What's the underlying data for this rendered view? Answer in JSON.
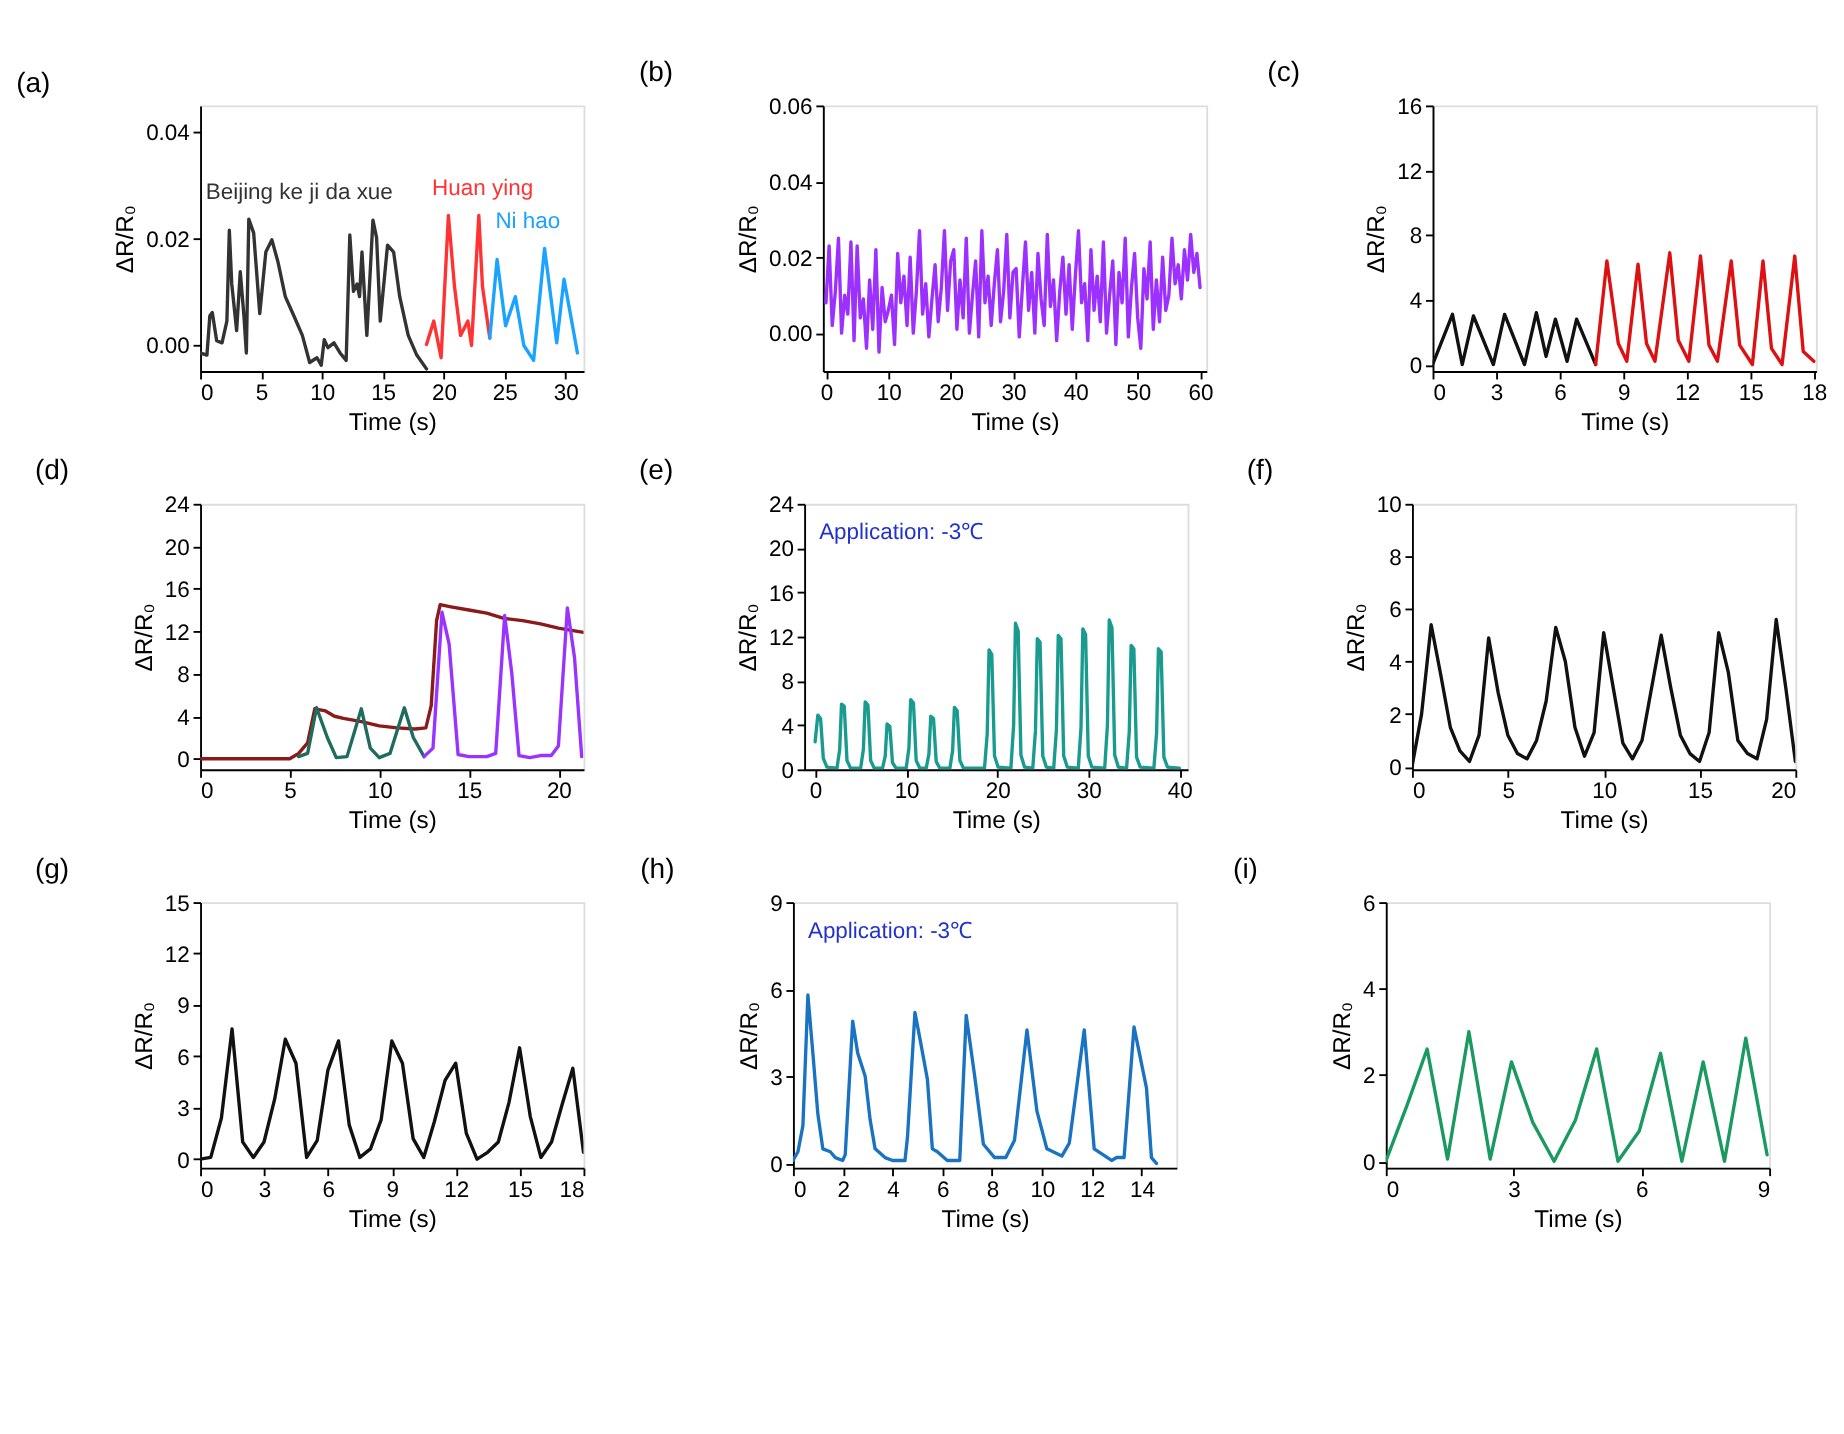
{
  "chart_data": [
    {
      "type": "line",
      "title": "(a)",
      "xlabel": "Time (s)",
      "ylabel": "ΔR/R₀",
      "xlim": [
        0,
        31.5
      ],
      "ylim": [
        -0.005,
        0.045
      ],
      "xticks": [
        0,
        5,
        10,
        15,
        20,
        25,
        30
      ],
      "yticks": [
        {
          "value": 0,
          "label": "0.00"
        },
        {
          "value": 0.02,
          "label": "0.02"
        },
        {
          "value": 0.04,
          "label": "0.04"
        }
      ],
      "series": [
        {
          "name": "Beijing ke ji da xue",
          "color": "#333333",
          "x": [
            0,
            0.56,
            0.8,
            1.0,
            1.36,
            1.8,
            2.2,
            2.4,
            2.6,
            3.0,
            3.3,
            3.6,
            3.8,
            4.0,
            4.4,
            4.9,
            5.4,
            5.9,
            6.4,
            7.0,
            7.7,
            8.4,
            9.0,
            9.6,
            9.95,
            10.2,
            10.5,
            11.0,
            11.5,
            12.0,
            12.3,
            12.6,
            12.9,
            13.1,
            13.3,
            13.7,
            14.2,
            14.5,
            14.8,
            15.4,
            15.9,
            16.4,
            17.1,
            17.8,
            18.6
          ],
          "values": [
            -0.0016,
            -0.002,
            0.0054,
            0.006,
            0.0007,
            0.0003,
            0.0044,
            0.0215,
            0.0114,
            0.0026,
            0.0137,
            0.0054,
            -0.0016,
            0.0236,
            0.021,
            0.0058,
            0.0174,
            0.0197,
            0.0155,
            0.009,
            0.0054,
            0.0017,
            -0.0034,
            -0.0025,
            -0.0039,
            0.0009,
            -0.0006,
            0.0003,
            -0.0016,
            -0.003,
            0.0206,
            0.01,
            0.0114,
            0.009,
            0.0174,
            0.0017,
            0.0234,
            0.0201,
            0.0044,
            0.0187,
            0.0174,
            0.009,
            0.0017,
            -0.002,
            -0.0046
          ]
        },
        {
          "name": "Huan ying",
          "color": "#ff3333",
          "x": [
            18.6,
            19.2,
            19.8,
            20.4,
            20.9,
            21.4,
            22.0,
            22.3,
            22.9,
            23.2,
            23.8
          ],
          "values": [
            0.0,
            0.0044,
            -0.0025,
            0.0243,
            0.0109,
            0.0017,
            0.0044,
            -0.0002,
            0.0243,
            0.0109,
            0.0012
          ]
        },
        {
          "name": "Ni hao",
          "color": "#1aa3ff",
          "x": [
            23.8,
            24.4,
            25.1,
            25.9,
            26.6,
            27.4,
            28.3,
            29.3,
            29.9,
            30.6,
            31.0
          ],
          "values": [
            0.0012,
            0.016,
            0.0035,
            0.009,
            -0.0002,
            -0.003,
            0.0181,
            0.0003,
            0.0123,
            0.0035,
            -0.0016
          ]
        }
      ]
    },
    {
      "type": "line",
      "title": "(b)",
      "xlabel": "Time (s)",
      "ylabel": "ΔR/R₀",
      "xlim": [
        -0.5,
        61
      ],
      "ylim": [
        -0.01,
        0.06
      ],
      "xticks": [
        0,
        10,
        20,
        30,
        40,
        50,
        60
      ],
      "yticks": [
        {
          "value": 0,
          "label": "0.00"
        },
        {
          "value": 0.02,
          "label": "0.02"
        },
        {
          "value": 0.04,
          "label": "0.04"
        },
        {
          "value": 0.06,
          "label": "0.06"
        }
      ],
      "series": [
        {
          "color": "#9b30ff",
          "x": [
            0,
            0.5,
            1,
            1.5,
            2,
            2.5,
            3,
            3.5,
            4,
            4.5,
            5,
            5.5,
            6,
            6.5,
            7,
            7.5,
            8,
            8.5,
            9,
            9.5,
            10,
            10.5,
            11,
            11.5,
            12,
            12.5,
            13,
            13.5,
            14,
            14.5,
            15,
            15.5,
            16,
            16.5,
            17,
            17.5,
            18,
            18.5,
            19,
            19.5,
            20,
            20.5,
            21,
            21.5,
            22,
            22.5,
            23,
            23.5,
            24,
            24.5,
            25,
            25.5,
            26,
            26.5,
            27,
            27.5,
            28,
            28.5,
            29,
            29.5,
            30,
            30.5,
            31,
            31.5,
            32,
            32.5,
            33,
            33.5,
            34,
            34.5,
            35,
            35.5,
            36,
            36.5,
            37,
            37.5,
            38,
            38.5,
            39,
            39.5,
            40,
            40.5,
            41,
            41.5,
            42,
            42.5,
            43,
            43.5,
            44,
            44.5,
            45,
            45.5,
            46,
            46.5,
            47,
            47.5,
            48,
            48.5,
            49,
            49.5,
            50,
            50.5,
            51,
            51.5,
            52,
            52.5,
            53,
            53.5,
            54,
            54.5,
            55,
            55.5,
            56,
            56.5,
            57,
            57.5,
            58,
            58.5,
            59,
            59.5,
            60
          ],
          "values": [
            0.008,
            0.023,
            0.002,
            0.011,
            0.025,
            0.0,
            0.01,
            0.005,
            0.024,
            -0.002,
            0.023,
            0.004,
            0.009,
            -0.004,
            0.014,
            0.001,
            0.022,
            -0.005,
            0.012,
            0.003,
            0.006,
            0.01,
            -0.003,
            0.021,
            0.008,
            0.015,
            0.002,
            0.02,
            0.0,
            0.011,
            0.027,
            0.005,
            0.013,
            -0.001,
            0.009,
            0.018,
            0.003,
            0.012,
            0.027,
            0.006,
            0.019,
            0.022,
            0.001,
            0.014,
            0.004,
            0.025,
            0.0,
            0.01,
            0.019,
            -0.001,
            0.027,
            0.008,
            0.015,
            0.002,
            0.013,
            0.022,
            0.003,
            0.011,
            0.026,
            0.004,
            0.016,
            0.017,
            -0.001,
            0.012,
            0.024,
            0.006,
            0.016,
            0.0,
            0.021,
            0.009,
            0.002,
            0.026,
            0.007,
            0.014,
            -0.002,
            0.011,
            0.02,
            0.005,
            0.018,
            0.001,
            0.015,
            0.027,
            0.008,
            0.013,
            -0.002,
            0.022,
            0.006,
            0.015,
            0.003,
            0.024,
            0.0,
            0.01,
            0.019,
            -0.003,
            0.016,
            0.008,
            0.025,
            -0.001,
            0.012,
            0.021,
            0.004,
            -0.004,
            0.017,
            0.009,
            0.024,
            0.001,
            0.014,
            0.003,
            0.02,
            0.006,
            0.01,
            0.025,
            0.013,
            0.018,
            0.009,
            0.022,
            0.014,
            0.026,
            0.016,
            0.021,
            0.012
          ]
        }
      ]
    },
    {
      "type": "line",
      "title": "(c)",
      "xlabel": "Time (s)",
      "ylabel": "ΔR/R₀",
      "xlim": [
        0,
        18.1
      ],
      "ylim": [
        -0.4,
        16
      ],
      "xticks": [
        0,
        3,
        6,
        9,
        12,
        15,
        18
      ],
      "yticks": [
        0,
        4,
        8,
        12,
        16
      ],
      "series": [
        {
          "color": "#111111",
          "x": [
            0,
            0.94,
            1.4,
            1.93,
            2.87,
            3.4,
            4.34,
            4.9,
            5.36,
            5.8,
            6.35,
            6.8,
            7.7
          ],
          "values": [
            0,
            3.1,
            0,
            3.0,
            0,
            3.1,
            0,
            3.2,
            0.5,
            2.8,
            0.2,
            2.8,
            0
          ]
        },
        {
          "color": "#dd1111",
          "x": [
            7.7,
            8.23,
            8.77,
            9.17,
            9.7,
            10.1,
            10.5,
            11.2,
            11.6,
            12.1,
            12.65,
            13.05,
            13.45,
            14.1,
            14.5,
            15.1,
            15.6,
            16.0,
            16.5,
            17.1,
            17.5,
            18.0
          ],
          "values": [
            0,
            6.4,
            1.3,
            0.2,
            6.2,
            1.3,
            0.2,
            6.9,
            1.5,
            0.2,
            6.7,
            1.2,
            0.2,
            6.4,
            1.2,
            0,
            6.4,
            1.0,
            0,
            6.7,
            0.8,
            0.2
          ]
        }
      ]
    },
    {
      "type": "line",
      "title": "(d)",
      "xlabel": "Time (s)",
      "ylabel": "ΔR/R₀",
      "xlim": [
        0,
        21.4
      ],
      "ylim": [
        -1,
        24
      ],
      "xticks": [
        0,
        5,
        10,
        15,
        20
      ],
      "yticks": [
        0,
        4,
        8,
        12,
        16,
        20,
        24
      ],
      "series": [
        {
          "color": "#8b1a1a",
          "x": [
            0,
            5,
            5.5,
            6.0,
            6.4,
            7.0,
            7.5,
            8,
            9,
            10,
            11,
            12,
            12.6,
            12.9,
            13.2,
            13.4,
            14,
            15,
            16,
            17,
            18,
            19,
            20,
            21.4
          ],
          "values": [
            0,
            0,
            0.5,
            1.5,
            4.7,
            4.5,
            4.0,
            3.8,
            3.5,
            3.1,
            2.9,
            2.8,
            2.9,
            5,
            13,
            14.5,
            14.3,
            14.0,
            13.7,
            13.2,
            13.0,
            12.7,
            12.3,
            11.9
          ]
        },
        {
          "color": "#1f6b5e",
          "x": [
            5.5,
            6.0,
            6.5,
            7.1,
            7.6,
            8.2,
            9.0,
            9.5,
            10,
            10.6,
            11.4,
            11.9,
            12.5
          ],
          "values": [
            0.2,
            0.5,
            4.8,
            2,
            0.1,
            0.2,
            4.7,
            1,
            0.1,
            0.5,
            4.8,
            2,
            0.2
          ]
        },
        {
          "color": "#9933ff",
          "x": [
            12.5,
            13.0,
            13.5,
            13.9,
            14.4,
            15.0,
            16.0,
            16.5,
            17.0,
            17.4,
            17.8,
            18.4,
            19,
            19.6,
            20.0,
            20.5,
            20.9,
            21.3
          ],
          "values": [
            0.2,
            1,
            13.8,
            10.8,
            0.4,
            0.2,
            0.2,
            0.5,
            13.5,
            8,
            0.3,
            0.1,
            0.3,
            0.3,
            1.2,
            14.2,
            9.5,
            0.2
          ]
        }
      ]
    },
    {
      "type": "line",
      "title": "(e)",
      "xlabel": "Time (s)",
      "ylabel": "ΔR/R₀",
      "annotations": [
        "Application: -3℃"
      ],
      "xlim": [
        -1.2,
        40.9
      ],
      "ylim": [
        0,
        24
      ],
      "xticks": [
        0,
        10,
        20,
        30,
        40
      ],
      "yticks": [
        0,
        4,
        8,
        12,
        16,
        20,
        24
      ],
      "series": [
        {
          "color": "#199c8f",
          "x": [
            0,
            0.3,
            0.6,
            0.9,
            1.3,
            2.4,
            2.7,
            2.9,
            3.2,
            3.5,
            3.9,
            5.0,
            5.3,
            5.5,
            5.8,
            6.1,
            6.5,
            7.4,
            7.7,
            7.9,
            8.2,
            8.5,
            8.9,
            10.0,
            10.3,
            10.5,
            10.8,
            11.1,
            11.5,
            12.2,
            12.5,
            12.7,
            13.0,
            13.3,
            13.7,
            14.8,
            15.1,
            15.3,
            15.6,
            15.9,
            16.3,
            18.6,
            18.9,
            19.1,
            19.4,
            19.7,
            20.1,
            21.5,
            21.8,
            22.0,
            22.3,
            22.6,
            23.0,
            23.9,
            24.2,
            24.4,
            24.7,
            25.0,
            25.4,
            26.2,
            26.5,
            26.7,
            27.0,
            27.3,
            27.7,
            28.9,
            29.2,
            29.4,
            29.7,
            30.0,
            30.4,
            31.8,
            32.1,
            32.3,
            32.6,
            32.9,
            33.3,
            34.2,
            34.5,
            34.7,
            35.0,
            35.3,
            35.7,
            37.2,
            37.5,
            37.7,
            38.0,
            38.3,
            38.7,
            40.0
          ],
          "values": [
            2.5,
            4.9,
            4.6,
            1.0,
            0.2,
            0.1,
            1.8,
            5.9,
            5.7,
            0.8,
            0.1,
            0.1,
            1.8,
            6.1,
            5.8,
            0.8,
            0.1,
            0.1,
            1.2,
            4.1,
            3.9,
            0.6,
            0.1,
            0.1,
            1.9,
            6.3,
            6.0,
            0.8,
            0.1,
            0.1,
            1.4,
            4.8,
            4.6,
            0.7,
            0.1,
            0.1,
            1.7,
            5.6,
            5.3,
            0.8,
            0.1,
            0.1,
            3.2,
            10.8,
            10.4,
            1.2,
            0.2,
            0.1,
            4.0,
            13.2,
            12.5,
            1.3,
            0.2,
            0.1,
            3.5,
            11.8,
            11.5,
            1.2,
            0.2,
            0.1,
            3.6,
            12.1,
            11.8,
            1.2,
            0.2,
            0.1,
            3.8,
            12.7,
            12.2,
            1.2,
            0.2,
            0.1,
            4.0,
            13.5,
            12.8,
            1.3,
            0.2,
            0.1,
            3.4,
            11.2,
            10.9,
            1.1,
            0.2,
            0.1,
            3.3,
            10.9,
            10.6,
            1.1,
            0.2,
            0.1
          ]
        }
      ]
    },
    {
      "type": "line",
      "title": "(f)",
      "xlabel": "Time (s)",
      "ylabel": "ΔR/R₀",
      "xlim": [
        0,
        20
      ],
      "ylim": [
        -0.1,
        10
      ],
      "xticks": [
        0,
        5,
        10,
        15,
        20
      ],
      "yticks": [
        0,
        2,
        4,
        6,
        8,
        10
      ],
      "series": [
        {
          "color": "#111111",
          "x": [
            0,
            0.5,
            1.0,
            1.5,
            2,
            2.5,
            3.0,
            3.5,
            4.0,
            4.5,
            5.0,
            5.5,
            6.0,
            6.5,
            7.0,
            7.5,
            8,
            8.5,
            9,
            9.5,
            10,
            10.5,
            11,
            11.5,
            12,
            13,
            13.5,
            14,
            14.5,
            15,
            15.5,
            16,
            16.5,
            17,
            17.5,
            18,
            18.5,
            19,
            19.5,
            20
          ],
          "values": [
            0,
            2,
            5.4,
            3.5,
            1.5,
            0.6,
            0.2,
            1.2,
            4.9,
            2.8,
            1.2,
            0.5,
            0.3,
            1,
            2.5,
            5.3,
            4,
            1.5,
            0.4,
            1.3,
            5.1,
            3,
            0.9,
            0.3,
            1,
            5.0,
            3,
            1.2,
            0.5,
            0.2,
            1.3,
            5.1,
            3.6,
            1,
            0.5,
            0.3,
            1.8,
            5.6,
            3,
            0.2
          ]
        }
      ]
    },
    {
      "type": "line",
      "title": "(g)",
      "xlabel": "Time (s)",
      "ylabel": "ΔR/R₀",
      "xlim": [
        0,
        18
      ],
      "ylim": [
        -0.5,
        15
      ],
      "xticks": [
        0,
        3,
        6,
        9,
        12,
        15,
        18
      ],
      "yticks": [
        0,
        3,
        6,
        9,
        12,
        15
      ],
      "series": [
        {
          "color": "#111111",
          "x": [
            0,
            0.5,
            1.0,
            1.5,
            2.0,
            2.5,
            3.0,
            3.5,
            4.0,
            4.5,
            5.0,
            5.5,
            6.0,
            6.5,
            7.0,
            7.5,
            8.0,
            8.5,
            9.0,
            9.5,
            10.0,
            10.5,
            11,
            11.5,
            12,
            12.5,
            13,
            13.5,
            14,
            14.5,
            15,
            15.5,
            16,
            16.5,
            17,
            17.5,
            18
          ],
          "values": [
            0,
            0.1,
            2.4,
            7.6,
            1.0,
            0.1,
            1.0,
            3.5,
            7.0,
            5.6,
            0.1,
            1.1,
            5.2,
            6.9,
            2,
            0.1,
            0.6,
            2.3,
            6.9,
            5.6,
            1.2,
            0.1,
            2.2,
            4.6,
            5.6,
            1.5,
            0,
            0.4,
            1,
            3.3,
            6.5,
            2.5,
            0.1,
            1,
            3.2,
            5.3,
            0.4
          ]
        }
      ]
    },
    {
      "type": "line",
      "title": "(h)",
      "xlabel": "Time (s)",
      "ylabel": "ΔR/R₀",
      "annotations": [
        "Application: -3℃"
      ],
      "xlim": [
        0,
        15.4
      ],
      "ylim": [
        -0.15,
        9
      ],
      "xticks": [
        0,
        2,
        4,
        6,
        8,
        10,
        12,
        14
      ],
      "yticks": [
        0,
        3,
        6,
        9
      ],
      "series": [
        {
          "color": "#1a73c2",
          "x": [
            0,
            0.2,
            0.4,
            0.6,
            0.8,
            1.0,
            1.2,
            1.5,
            1.7,
            2.0,
            2.1,
            2.4,
            2.6,
            2.9,
            3.1,
            3.3,
            3.7,
            4.0,
            4.5,
            4.6,
            4.9,
            5.1,
            5.4,
            5.6,
            5.8,
            6.2,
            6.7,
            6.96,
            7.3,
            7.65,
            8.1,
            8.55,
            8.9,
            9.4,
            9.8,
            10.2,
            10.8,
            11.1,
            11.7,
            12.1,
            12.8,
            13.0,
            13.3,
            13.7,
            14.2,
            14.4,
            14.6
          ],
          "values": [
            0.1,
            0.4,
            1.3,
            5.8,
            3.8,
            1.7,
            0.5,
            0.4,
            0.2,
            0.1,
            0.3,
            4.9,
            3.8,
            3.0,
            1.5,
            0.5,
            0.2,
            0.1,
            0.1,
            0.9,
            5.2,
            4.3,
            2.9,
            0.5,
            0.4,
            0.1,
            0.1,
            5.1,
            3.0,
            0.66,
            0.2,
            0.2,
            0.8,
            4.6,
            1.8,
            0.5,
            0.25,
            0.7,
            4.6,
            0.5,
            0.1,
            0.2,
            0.2,
            4.7,
            2.6,
            0.2,
            0
          ]
        }
      ]
    },
    {
      "type": "line",
      "title": "(i)",
      "xlabel": "Time (s)",
      "ylabel": "ΔR/R₀",
      "xlim": [
        0,
        9
      ],
      "ylim": [
        -0.15,
        6
      ],
      "xticks": [
        0,
        3,
        6,
        9
      ],
      "yticks": [
        0,
        2,
        4,
        6
      ],
      "series": [
        {
          "color": "#1a9960",
          "x": [
            0,
            0.5,
            0.97,
            1.45,
            1.95,
            2.45,
            2.95,
            3.45,
            3.95,
            4.45,
            4.95,
            5.45,
            5.95,
            6.45,
            6.95,
            7.45,
            7.95,
            8.45,
            8.95
          ],
          "values": [
            0,
            1.3,
            2.6,
            0.05,
            3.0,
            0.05,
            2.3,
            0.9,
            0,
            0.95,
            2.6,
            0,
            0.7,
            2.5,
            0,
            2.3,
            0,
            2.85,
            0.15
          ]
        }
      ]
    }
  ]
}
